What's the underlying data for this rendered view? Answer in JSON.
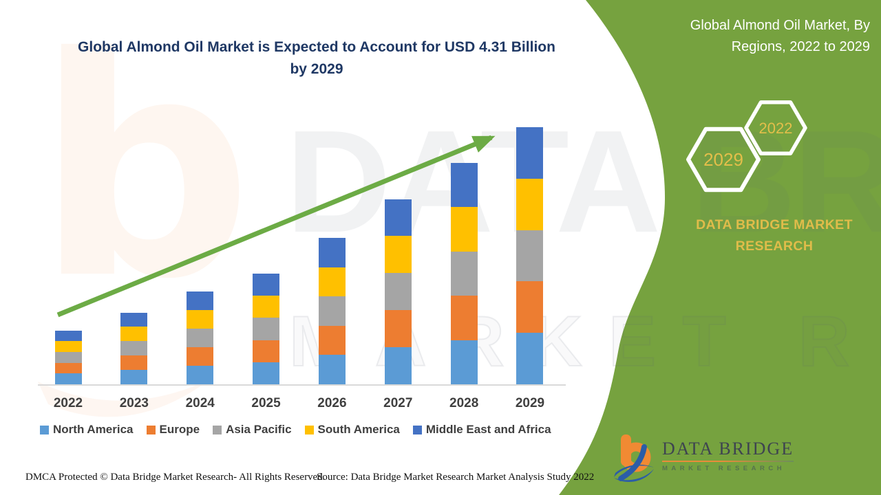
{
  "header": {
    "title_line1": "Global Almond Oil Market is Expected to Account for USD 4.31 Billion",
    "title_line2": "by 2029",
    "title_color": "#1F3864"
  },
  "side_panel": {
    "background_color": "#76A23F",
    "title_line1": "Global Almond Oil Market, By",
    "title_line2": "Regions, 2022 to 2029",
    "hexagons": [
      {
        "label": "2029"
      },
      {
        "label": "2022"
      }
    ],
    "hex_label_color": "#E3BE4A",
    "brand_line1": "DATA BRIDGE MARKET",
    "brand_line2": "RESEARCH",
    "brand_color": "#E0BC4A"
  },
  "watermark": {
    "letter": "b",
    "row1": "DATA BRIDGE",
    "row2": "MARKET RESEARCH"
  },
  "chart_data": {
    "type": "bar",
    "stacked": true,
    "title": "Global Almond Oil Market, By Regions, 2022 to 2029",
    "unit": "USD Billion",
    "categories": [
      "2022",
      "2023",
      "2024",
      "2025",
      "2026",
      "2027",
      "2028",
      "2029"
    ],
    "series": [
      {
        "name": "North America",
        "color": "#5B9BD5",
        "values": [
          0.18,
          0.24,
          0.31,
          0.37,
          0.49,
          0.62,
          0.74,
          0.86
        ]
      },
      {
        "name": "Europe",
        "color": "#ED7D31",
        "values": [
          0.18,
          0.24,
          0.31,
          0.37,
          0.49,
          0.62,
          0.74,
          0.86
        ]
      },
      {
        "name": "Asia Pacific",
        "color": "#A5A5A5",
        "values": [
          0.18,
          0.24,
          0.31,
          0.37,
          0.49,
          0.62,
          0.74,
          0.86
        ]
      },
      {
        "name": "South America",
        "color": "#FFC000",
        "values": [
          0.18,
          0.24,
          0.31,
          0.37,
          0.49,
          0.62,
          0.74,
          0.86
        ]
      },
      {
        "name": "Middle East and Africa",
        "color": "#4472C4",
        "values": [
          0.18,
          0.24,
          0.31,
          0.37,
          0.49,
          0.62,
          0.74,
          0.86
        ]
      }
    ],
    "totals_usd_billion": [
      0.9,
      1.2,
      1.55,
      1.85,
      2.45,
      3.1,
      3.7,
      4.3
    ],
    "annotation": "USD 4.31 Billion by 2029",
    "xlabel": "",
    "ylabel": "",
    "axis": {
      "y_axis_visible": false,
      "x_baseline_color": "#D9D9D9"
    },
    "grid": false,
    "legend_position": "bottom",
    "trend_arrow": true,
    "trend_arrow_color": "#6CAB45"
  },
  "footer": {
    "left": "DMCA Protected © Data Bridge Market Research- All Rights Reserved.",
    "right": "Source: Data Bridge Market Research Market Analysis Study 2022"
  },
  "logo": {
    "name": "DATA BRIDGE",
    "subtitle": "MARKET RESEARCH"
  }
}
